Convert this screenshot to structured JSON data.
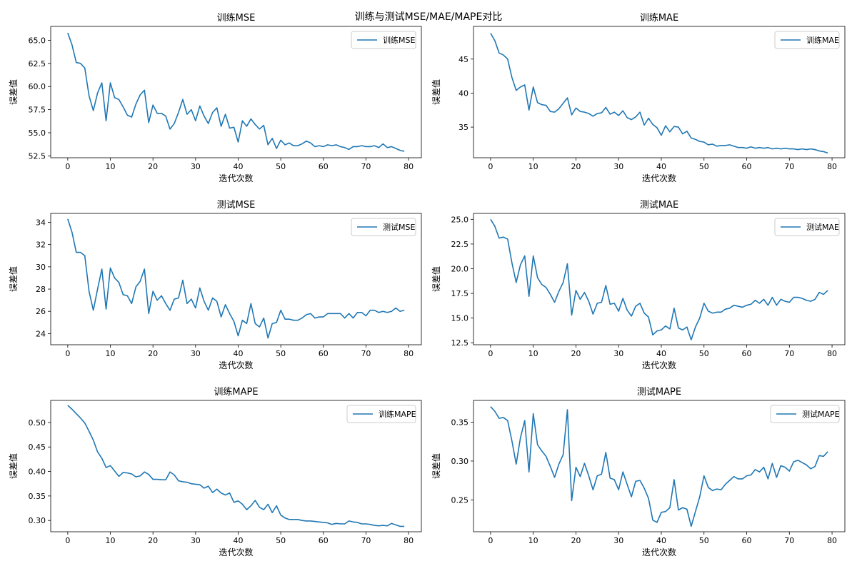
{
  "suptitle": "训练与测试MSE/MAE/MAPE对比",
  "colors": {
    "line": "#1f77b4",
    "axis": "#000000",
    "legend_border": "#cccccc"
  },
  "chart_data": [
    {
      "type": "line",
      "title": "训练MSE",
      "xlabel": "迭代次数",
      "ylabel": "误差值",
      "xlim": [
        -4,
        83
      ],
      "ylim": [
        52.3,
        66.5
      ],
      "xticks": [
        0,
        10,
        20,
        30,
        40,
        50,
        60,
        70,
        80
      ],
      "yticks": [
        52.5,
        55.0,
        57.5,
        60.0,
        62.5,
        65.0
      ],
      "yticklabels": [
        "52.5",
        "55.0",
        "57.5",
        "60.0",
        "62.5",
        "65.0"
      ],
      "grid": false,
      "legend": "top-right",
      "series": [
        {
          "name": "训练MSE",
          "values": [
            65.8,
            64.5,
            62.6,
            62.5,
            62.0,
            59.0,
            57.4,
            59.3,
            60.4,
            56.3,
            60.4,
            58.8,
            58.6,
            57.8,
            56.9,
            56.7,
            58.1,
            59.1,
            59.6,
            56.1,
            58.0,
            57.1,
            57.1,
            56.8,
            55.4,
            56.0,
            57.2,
            58.6,
            57.0,
            57.5,
            56.3,
            57.9,
            56.8,
            56.0,
            57.2,
            57.7,
            55.7,
            57.0,
            55.5,
            55.6,
            54.0,
            56.3,
            55.7,
            56.5,
            55.9,
            55.4,
            55.8,
            53.7,
            54.4,
            53.3,
            54.2,
            53.7,
            53.9,
            53.6,
            53.6,
            53.8,
            54.1,
            53.9,
            53.5,
            53.6,
            53.5,
            53.7,
            53.6,
            53.7,
            53.5,
            53.4,
            53.2,
            53.5,
            53.5,
            53.6,
            53.5,
            53.5,
            53.6,
            53.4,
            53.8,
            53.4,
            53.5,
            53.3,
            53.1,
            53.0
          ]
        }
      ]
    },
    {
      "type": "line",
      "title": "训练MAE",
      "xlabel": "迭代次数",
      "ylabel": "误差值",
      "xlim": [
        -4,
        83
      ],
      "ylim": [
        30.5,
        49.8
      ],
      "xticks": [
        0,
        10,
        20,
        30,
        40,
        50,
        60,
        70,
        80
      ],
      "yticks": [
        35,
        40,
        45
      ],
      "yticklabels": [
        "35",
        "40",
        "45"
      ],
      "grid": false,
      "legend": "top-right",
      "series": [
        {
          "name": "训练MAE",
          "values": [
            48.8,
            47.7,
            45.9,
            45.6,
            45.0,
            42.3,
            40.4,
            40.9,
            41.2,
            37.5,
            40.9,
            38.6,
            38.3,
            38.2,
            37.3,
            37.2,
            37.7,
            38.5,
            39.3,
            36.8,
            37.8,
            37.3,
            37.2,
            37.0,
            36.6,
            37.0,
            37.1,
            37.9,
            36.9,
            37.2,
            36.7,
            37.4,
            36.4,
            36.1,
            36.5,
            37.2,
            35.3,
            36.3,
            35.4,
            34.9,
            33.8,
            35.2,
            34.3,
            35.1,
            35.0,
            34.0,
            34.4,
            33.4,
            33.2,
            32.9,
            32.8,
            32.4,
            32.5,
            32.2,
            32.3,
            32.3,
            32.4,
            32.2,
            32.0,
            32.0,
            31.9,
            32.1,
            31.9,
            32.0,
            31.9,
            32.0,
            31.8,
            31.9,
            31.8,
            31.9,
            31.8,
            31.8,
            31.7,
            31.8,
            31.7,
            31.8,
            31.7,
            31.5,
            31.4,
            31.2
          ]
        }
      ]
    },
    {
      "type": "line",
      "title": "测试MSE",
      "xlabel": "迭代次数",
      "ylabel": "误差值",
      "xlim": [
        -4,
        83
      ],
      "ylim": [
        23.0,
        34.8
      ],
      "xticks": [
        0,
        10,
        20,
        30,
        40,
        50,
        60,
        70,
        80
      ],
      "yticks": [
        24,
        26,
        28,
        30,
        32,
        34
      ],
      "yticklabels": [
        "24",
        "26",
        "28",
        "30",
        "32",
        "34"
      ],
      "grid": false,
      "legend": "top-right",
      "series": [
        {
          "name": "测试MSE",
          "values": [
            34.3,
            33.1,
            31.3,
            31.3,
            31.0,
            27.8,
            26.1,
            28.0,
            29.8,
            26.2,
            29.9,
            29.0,
            28.6,
            27.5,
            27.4,
            26.7,
            28.2,
            28.7,
            29.8,
            25.8,
            27.8,
            27.0,
            27.4,
            26.7,
            26.1,
            27.1,
            27.2,
            28.8,
            26.7,
            27.1,
            26.3,
            28.1,
            26.9,
            26.1,
            27.2,
            26.9,
            25.5,
            26.6,
            25.8,
            25.1,
            23.8,
            25.2,
            24.9,
            26.7,
            24.9,
            24.6,
            25.4,
            23.6,
            24.9,
            25.0,
            26.1,
            25.3,
            25.3,
            25.2,
            25.2,
            25.4,
            25.7,
            25.8,
            25.4,
            25.5,
            25.5,
            25.8,
            25.8,
            25.8,
            25.8,
            25.4,
            25.8,
            25.4,
            25.9,
            25.9,
            25.6,
            26.1,
            26.1,
            25.9,
            26.0,
            25.9,
            26.0,
            26.3,
            26.0,
            26.1
          ]
        }
      ]
    },
    {
      "type": "line",
      "title": "测试MAE",
      "xlabel": "迭代次数",
      "ylabel": "误差值",
      "xlim": [
        -4,
        83
      ],
      "ylim": [
        12.3,
        25.6
      ],
      "xticks": [
        0,
        10,
        20,
        30,
        40,
        50,
        60,
        70,
        80
      ],
      "yticks": [
        12.5,
        15.0,
        17.5,
        20.0,
        22.5,
        25.0
      ],
      "yticklabels": [
        "12.5",
        "15.0",
        "17.5",
        "20.0",
        "22.5",
        "25.0"
      ],
      "grid": false,
      "legend": "top-right",
      "series": [
        {
          "name": "测试MAE",
          "values": [
            25.0,
            24.3,
            23.1,
            23.2,
            23.0,
            20.6,
            18.6,
            20.4,
            21.3,
            17.2,
            21.3,
            19.1,
            18.4,
            18.1,
            17.4,
            16.6,
            17.7,
            18.6,
            20.5,
            15.3,
            17.8,
            16.9,
            17.6,
            16.7,
            15.4,
            16.5,
            16.6,
            18.3,
            16.4,
            16.5,
            15.7,
            17.0,
            15.8,
            15.2,
            16.2,
            16.5,
            15.5,
            15.1,
            13.3,
            13.7,
            13.8,
            14.2,
            13.9,
            16.0,
            14.0,
            13.8,
            14.1,
            12.8,
            14.1,
            15.0,
            16.5,
            15.7,
            15.5,
            15.6,
            15.6,
            15.9,
            16.0,
            16.3,
            16.2,
            16.1,
            16.3,
            16.4,
            16.8,
            16.5,
            16.9,
            16.3,
            17.1,
            16.3,
            16.9,
            16.7,
            16.6,
            17.1,
            17.1,
            17.0,
            16.8,
            16.7,
            16.9,
            17.6,
            17.4,
            17.8
          ]
        }
      ]
    },
    {
      "type": "line",
      "title": "训练MAPE",
      "xlabel": "迭代次数",
      "ylabel": "误差值",
      "xlim": [
        -4,
        83
      ],
      "ylim": [
        0.277,
        0.545
      ],
      "xticks": [
        0,
        10,
        20,
        30,
        40,
        50,
        60,
        70,
        80
      ],
      "yticks": [
        0.3,
        0.35,
        0.4,
        0.45,
        0.5
      ],
      "yticklabels": [
        "0.30",
        "0.35",
        "0.40",
        "0.45",
        "0.50"
      ],
      "grid": false,
      "legend": "top-right",
      "series": [
        {
          "name": "训练MAPE",
          "values": [
            0.535,
            0.527,
            0.518,
            0.509,
            0.499,
            0.482,
            0.464,
            0.44,
            0.427,
            0.408,
            0.412,
            0.401,
            0.39,
            0.398,
            0.397,
            0.395,
            0.389,
            0.391,
            0.399,
            0.394,
            0.384,
            0.384,
            0.383,
            0.383,
            0.399,
            0.393,
            0.381,
            0.379,
            0.378,
            0.375,
            0.374,
            0.373,
            0.366,
            0.37,
            0.357,
            0.364,
            0.356,
            0.352,
            0.356,
            0.337,
            0.34,
            0.333,
            0.322,
            0.33,
            0.341,
            0.327,
            0.322,
            0.333,
            0.316,
            0.33,
            0.311,
            0.305,
            0.302,
            0.302,
            0.302,
            0.3,
            0.299,
            0.299,
            0.298,
            0.297,
            0.296,
            0.295,
            0.292,
            0.294,
            0.293,
            0.293,
            0.299,
            0.297,
            0.296,
            0.293,
            0.293,
            0.292,
            0.29,
            0.289,
            0.29,
            0.289,
            0.294,
            0.291,
            0.288,
            0.288
          ]
        }
      ]
    },
    {
      "type": "line",
      "title": "测试MAPE",
      "xlabel": "迭代次数",
      "ylabel": "误差值",
      "xlim": [
        -4,
        83
      ],
      "ylim": [
        0.209,
        0.378
      ],
      "xticks": [
        0,
        10,
        20,
        30,
        40,
        50,
        60,
        70,
        80
      ],
      "yticks": [
        0.25,
        0.3,
        0.35
      ],
      "yticklabels": [
        "0.25",
        "0.30",
        "0.35"
      ],
      "grid": false,
      "legend": "top-right",
      "series": [
        {
          "name": "测试MAPE",
          "values": [
            0.37,
            0.364,
            0.355,
            0.356,
            0.352,
            0.326,
            0.296,
            0.33,
            0.352,
            0.286,
            0.361,
            0.321,
            0.313,
            0.306,
            0.293,
            0.279,
            0.296,
            0.308,
            0.366,
            0.249,
            0.292,
            0.28,
            0.297,
            0.281,
            0.263,
            0.281,
            0.283,
            0.311,
            0.278,
            0.276,
            0.263,
            0.286,
            0.27,
            0.254,
            0.274,
            0.275,
            0.265,
            0.252,
            0.224,
            0.221,
            0.234,
            0.235,
            0.24,
            0.276,
            0.237,
            0.24,
            0.238,
            0.216,
            0.235,
            0.254,
            0.281,
            0.266,
            0.262,
            0.264,
            0.263,
            0.27,
            0.275,
            0.28,
            0.277,
            0.277,
            0.281,
            0.282,
            0.289,
            0.286,
            0.292,
            0.277,
            0.297,
            0.279,
            0.294,
            0.292,
            0.287,
            0.299,
            0.301,
            0.298,
            0.295,
            0.29,
            0.293,
            0.307,
            0.306,
            0.312
          ]
        }
      ]
    }
  ]
}
